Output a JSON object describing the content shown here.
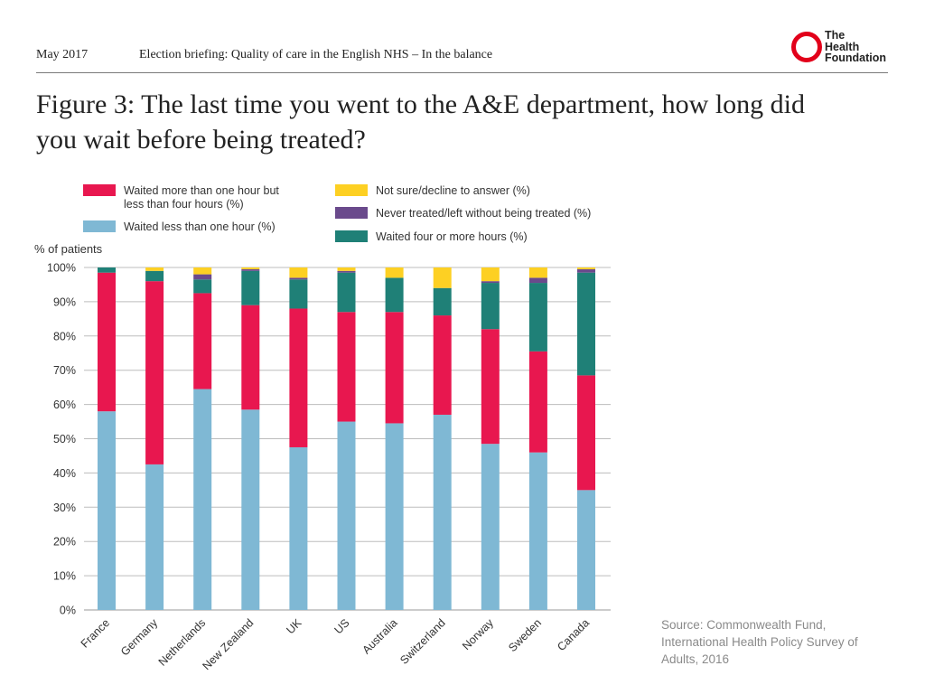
{
  "header": {
    "date": "May 2017",
    "briefing": "Election briefing: Quality of care in the English NHS – In the balance",
    "logo_lines": [
      "The",
      "Health",
      "Foundation"
    ]
  },
  "title": "Figure 3: The last time you went to the A&E department, how long did you wait before being treated?",
  "source": "Source: Commonwealth Fund, International Health Policy Survey of Adults, 2016",
  "chart_data": {
    "type": "bar",
    "stacked": true,
    "orientation": "vertical",
    "ylabel": "% of patients",
    "xlabel": "",
    "ylim": [
      0,
      100
    ],
    "ytick_values": [
      0,
      10,
      20,
      30,
      40,
      50,
      60,
      70,
      80,
      90,
      100
    ],
    "ytick_labels": [
      "0%",
      "10%",
      "20%",
      "30%",
      "40%",
      "50%",
      "60%",
      "70%",
      "80%",
      "90%",
      "100%"
    ],
    "grid": true,
    "legend_position": "top",
    "categories": [
      "France",
      "Germany",
      "Netherlands",
      "New Zealand",
      "UK",
      "US",
      "Australia",
      "Switzerland",
      "Norway",
      "Sweden",
      "Canada"
    ],
    "series": [
      {
        "key": "lt1",
        "name": "Waited less than one hour (%)",
        "color": "#7fb8d4",
        "values": [
          58,
          42.5,
          64.5,
          58.5,
          47.5,
          55,
          54.5,
          57,
          48.5,
          46,
          35
        ]
      },
      {
        "key": "1to4",
        "name": "Waited more than one hour but less than four hours (%)",
        "color": "#e8174f",
        "values": [
          40.5,
          53.5,
          28,
          30.5,
          40.5,
          32,
          32.5,
          29,
          33.5,
          29.5,
          33.5
        ]
      },
      {
        "key": "ge4",
        "name": "Waited four or more hours (%)",
        "color": "#1f8077",
        "values": [
          1.5,
          3,
          4,
          10,
          8.5,
          11.5,
          10,
          8,
          13.5,
          20,
          30
        ]
      },
      {
        "key": "never",
        "name": "Never treated/left without being treated (%)",
        "color": "#6a4a8c",
        "values": [
          0,
          0,
          1.5,
          0.5,
          0.5,
          0.5,
          0,
          0,
          0.5,
          1.5,
          1
        ]
      },
      {
        "key": "notsure",
        "name": "Not sure/decline to answer (%)",
        "color": "#fdd023",
        "values": [
          0,
          1,
          2,
          0.5,
          3,
          1,
          3,
          6,
          4,
          3,
          0.5
        ]
      }
    ],
    "legend_order": [
      "1to4",
      "notsure",
      "lt1",
      "never",
      "ge4"
    ]
  }
}
